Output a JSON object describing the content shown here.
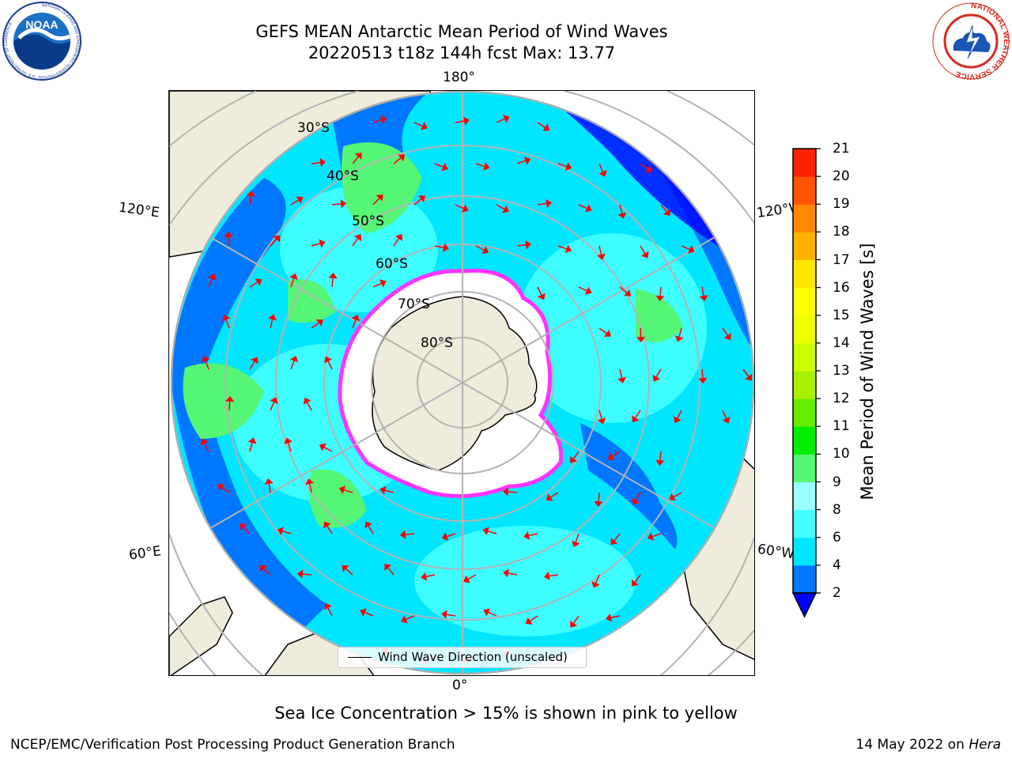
{
  "title": {
    "line1": "GEFS MEAN Antarctic Mean Period of Wind Waves",
    "line2": "20220513 t18z 144h fcst   Max: 13.77"
  },
  "logos": {
    "left": "noaa-logo",
    "right": "national-weather-service-logo",
    "noaa_text": "NOAA",
    "noaa_ring": "NATIONAL OCEANIC AND ATMOSPHERIC ADMINISTRATION · U.S. DEPARTMENT OF COMMERCE",
    "nws_ring": "NATIONAL WEATHER SERVICE"
  },
  "map": {
    "projection": "south-polar-stereographic",
    "longitude_labels": {
      "top": "180°",
      "bottom": "0°",
      "upper_left": "120°E",
      "upper_right": "120°W",
      "lower_left": "60°E",
      "lower_right": "60°W"
    },
    "latitude_labels": [
      "30°S",
      "40°S",
      "50°S",
      "60°S",
      "70°S",
      "80°S"
    ],
    "legend": "Wind Wave Direction (unscaled)",
    "colors": {
      "land": "#efecdc",
      "sea_ice": "#ffffff",
      "ice_edge": "#ff33ff",
      "arrow": "#ff0000",
      "gridline": "#b3b3b3"
    }
  },
  "colorbar": {
    "label": "Mean Period of Wind Waves [s]",
    "ticks": [
      "2",
      "4",
      "6",
      "8",
      "9",
      "10",
      "11",
      "12",
      "13",
      "14",
      "15",
      "16",
      "17",
      "18",
      "19",
      "20",
      "21"
    ],
    "levels": [
      2,
      4,
      6,
      8,
      9,
      10,
      11,
      12,
      13,
      14,
      15,
      16,
      17,
      18,
      19,
      20,
      21
    ],
    "colors": [
      "#0077ff",
      "#00e6ff",
      "#44ffff",
      "#99ffff",
      "#55f575",
      "#00ee00",
      "#66ee00",
      "#aaee00",
      "#ccff00",
      "#eeff00",
      "#ffff00",
      "#ffe600",
      "#ffb300",
      "#ff8800",
      "#ff5500",
      "#ff2200",
      "#ff0000"
    ],
    "extend_min_color": "#0000ff"
  },
  "subnote": "Sea Ice Concentration > 15% is shown in pink to yellow",
  "footer": {
    "left": "NCEP/EMC/Verification Post Processing Product Generation Branch",
    "right_date": "14 May 2022 on",
    "right_host": "Hera"
  }
}
